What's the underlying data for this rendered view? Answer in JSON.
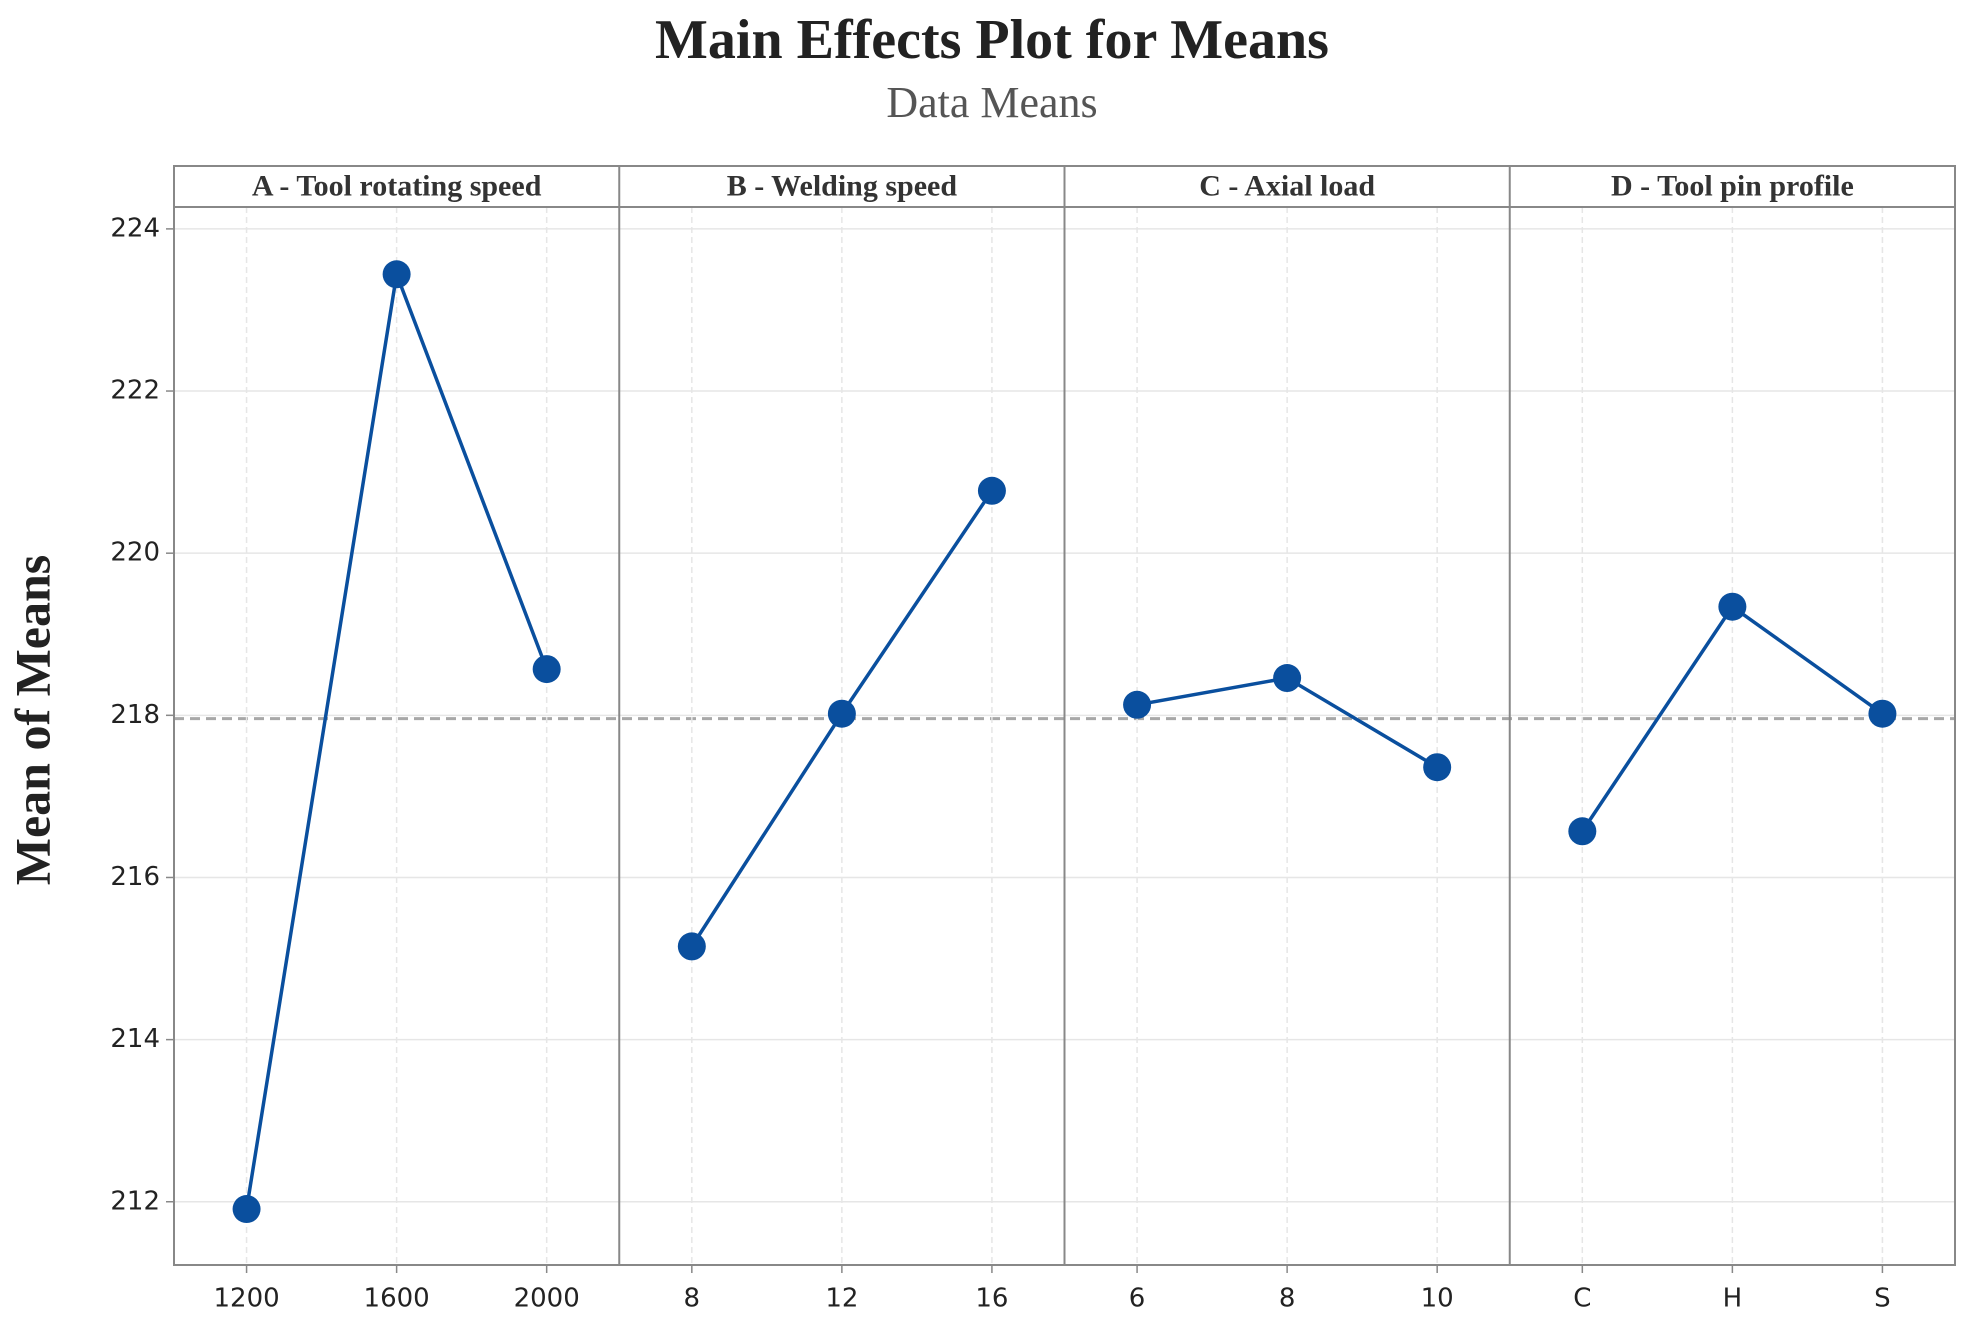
{
  "chart_data": {
    "type": "line",
    "title": "Main Effects Plot for Means",
    "subtitle": "Data Means",
    "y_label": "Mean of Means",
    "ylim": [
      211.22,
      224.27
    ],
    "yticks": [
      212,
      214,
      216,
      218,
      220,
      222,
      224
    ],
    "grid": true,
    "color": "#0a4f9e",
    "mean": 217.96,
    "panels": [
      {
        "title": "A - Tool rotating speed",
        "categories": [
          "1200",
          "1600",
          "2000"
        ],
        "values": [
          211.91,
          223.44,
          218.57
        ]
      },
      {
        "title": "B - Welding speed",
        "categories": [
          "8",
          "12",
          "16"
        ],
        "values": [
          215.15,
          218.02,
          220.77
        ]
      },
      {
        "title": "C - Axial load",
        "categories": [
          "6",
          "8",
          "10"
        ],
        "values": [
          218.13,
          218.46,
          217.36
        ]
      },
      {
        "title": "D - Tool pin profile",
        "categories": [
          "C",
          "H",
          "S"
        ],
        "values": [
          216.57,
          219.34,
          218.02
        ]
      }
    ]
  }
}
